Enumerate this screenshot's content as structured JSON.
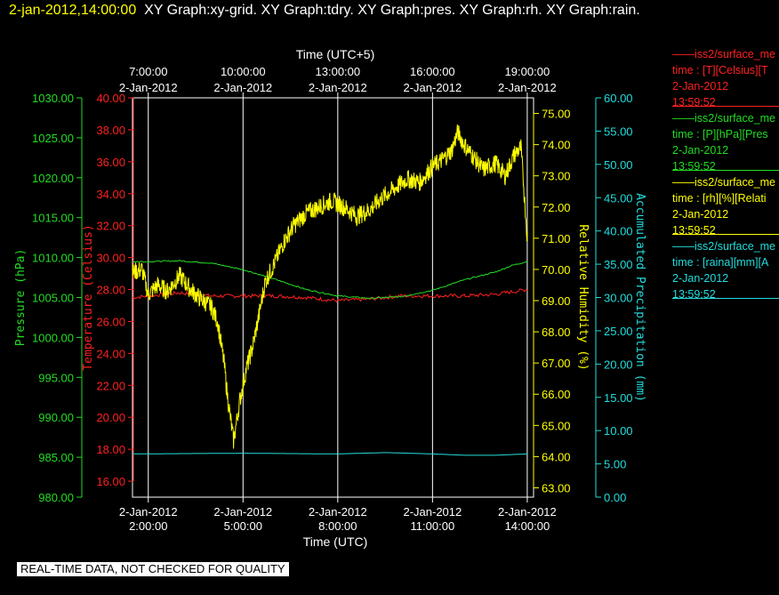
{
  "header": {
    "timestamp": "2-jan-2012,14:00:00",
    "graphs": "XY Graph:xy-grid.  XY Graph:tdry.  XY Graph:pres.  XY Graph:rh.  XY Graph:rain."
  },
  "footer": "REAL-TIME DATA, NOT CHECKED FOR QUALITY",
  "legend": [
    {
      "title": "——iss2/surface_me",
      "line1": "time : [T][Celsius][T",
      "line2": "2-Jan-2012",
      "line3": "13:59:52",
      "color": "#ff2020"
    },
    {
      "title": "——iss2/surface_me",
      "line1": "time : [P][hPa][Pres",
      "line2": "2-Jan-2012",
      "line3": "13:59:52",
      "color": "#22dd22"
    },
    {
      "title": "——iss2/surface_me",
      "line1": "time : [rh][%][Relati",
      "line2": "2-Jan-2012",
      "line3": "13:59:52",
      "color": "#ffff00"
    },
    {
      "title": "——iss2/surface_me",
      "line1": "time : [raina][mm][A",
      "line2": "2-Jan-2012",
      "line3": "13:59:52",
      "color": "#22dddd"
    }
  ],
  "chart_data": {
    "type": "line",
    "x_unit": "hour of day, 2-Jan-2012 (UTC)",
    "xlim": [
      1.5,
      14.2
    ],
    "x_bottom": {
      "label": "Time (UTC)",
      "ticks": [
        {
          "x": 2,
          "date": "2-Jan-2012",
          "time": "2:00:00"
        },
        {
          "x": 5,
          "date": "2-Jan-2012",
          "time": "5:00:00"
        },
        {
          "x": 8,
          "date": "2-Jan-2012",
          "time": "8:00:00"
        },
        {
          "x": 11,
          "date": "2-Jan-2012",
          "time": "11:00:00"
        },
        {
          "x": 14,
          "date": "2-Jan-2012",
          "time": "14:00:00"
        }
      ]
    },
    "x_top": {
      "label": "Time (UTC+5)",
      "ticks": [
        {
          "x": 2,
          "time": "7:00:00",
          "date": "2-Jan-2012"
        },
        {
          "x": 5,
          "time": "10:00:00",
          "date": "2-Jan-2012"
        },
        {
          "x": 8,
          "time": "13:00:00",
          "date": "2-Jan-2012"
        },
        {
          "x": 11,
          "time": "16:00:00",
          "date": "2-Jan-2012"
        },
        {
          "x": 14,
          "time": "19:00:00",
          "date": "2-Jan-2012"
        }
      ]
    },
    "grid": "vertical at major time ticks",
    "axes": [
      {
        "id": "pres",
        "label": "Pressure (hPa)",
        "color": "#22dd22",
        "ylim": [
          980,
          1030
        ],
        "ticks": [
          "980.00",
          "985.00",
          "990.00",
          "995.00",
          "1000.00",
          "1005.00",
          "1010.00",
          "1015.00",
          "1020.00",
          "1025.00",
          "1030.00"
        ]
      },
      {
        "id": "tdry",
        "label": "Temperature (Celsius)",
        "color": "#ff2020",
        "ylim": [
          15,
          40
        ],
        "ticks": [
          "16.00",
          "18.00",
          "20.00",
          "22.00",
          "24.00",
          "26.00",
          "28.00",
          "30.00",
          "32.00",
          "34.00",
          "36.00",
          "38.00",
          "40.00"
        ]
      },
      {
        "id": "rh",
        "label": "Relative Humidity (%)",
        "color": "#ffff00",
        "ylim": [
          62.7,
          75.5
        ],
        "ticks": [
          "63.00",
          "64.00",
          "65.00",
          "66.00",
          "67.00",
          "68.00",
          "69.00",
          "70.00",
          "71.00",
          "72.00",
          "73.00",
          "74.00",
          "75.00"
        ]
      },
      {
        "id": "rain",
        "label": "Accumulated Precipitation (mm)",
        "color": "#22dddd",
        "ylim": [
          0,
          60
        ],
        "ticks": [
          "0.00",
          "5.00",
          "10.00",
          "15.00",
          "20.00",
          "25.00",
          "30.00",
          "35.00",
          "40.00",
          "45.00",
          "50.00",
          "55.00",
          "60.00"
        ]
      }
    ],
    "series": [
      {
        "axis": "tdry",
        "color": "#ff2020",
        "x": [
          1.5,
          3,
          4,
          5,
          6,
          7,
          8,
          9,
          10,
          11,
          12,
          13,
          14
        ],
        "values": [
          27.5,
          27.8,
          27.6,
          27.6,
          27.6,
          27.5,
          27.3,
          27.4,
          27.6,
          27.6,
          27.6,
          27.7,
          28.0
        ],
        "noise": 0.12
      },
      {
        "axis": "pres",
        "color": "#22dd22",
        "x": [
          1.5,
          2,
          3,
          4,
          5,
          6,
          7,
          8,
          9,
          10,
          11,
          12,
          13,
          13.5,
          14
        ],
        "values": [
          1009.5,
          1009.5,
          1009.6,
          1009.3,
          1008.5,
          1007.3,
          1006.0,
          1005.2,
          1004.9,
          1005.1,
          1005.9,
          1007.2,
          1008.2,
          1009.0,
          1009.5
        ],
        "noise": 0.08
      },
      {
        "axis": "rh",
        "color": "#ffff00",
        "x": [
          1.5,
          1.8,
          2.0,
          2.3,
          2.6,
          3.0,
          3.3,
          3.6,
          4.0,
          4.2,
          4.4,
          4.5,
          4.7,
          4.9,
          5.1,
          5.3,
          5.5,
          5.7,
          6.0,
          6.3,
          6.6,
          7.0,
          7.4,
          7.8,
          8.2,
          8.6,
          9.0,
          9.4,
          9.8,
          10.2,
          10.6,
          11.0,
          11.3,
          11.6,
          11.8,
          12.0,
          12.3,
          12.6,
          13.0,
          13.3,
          13.6,
          13.8,
          13.9,
          14.0
        ],
        "values": [
          69.9,
          70.0,
          69.2,
          69.5,
          69.3,
          69.8,
          69.4,
          69.1,
          68.8,
          68.3,
          67.0,
          66.0,
          64.5,
          65.8,
          66.8,
          67.5,
          68.5,
          69.6,
          70.2,
          70.9,
          71.4,
          71.8,
          72.0,
          72.2,
          72.0,
          71.7,
          71.9,
          72.3,
          72.6,
          72.9,
          72.8,
          73.3,
          73.5,
          73.8,
          74.4,
          74.0,
          73.6,
          73.2,
          73.4,
          73.0,
          73.7,
          73.9,
          72.5,
          71.0
        ],
        "noise": 0.3
      },
      {
        "axis": "rain",
        "color": "#22dddd",
        "x": [
          1.5,
          5,
          8,
          9.5,
          11,
          12,
          13,
          14
        ],
        "values": [
          6.5,
          6.6,
          6.5,
          6.7,
          6.5,
          6.3,
          6.3,
          6.5
        ],
        "noise": 0
      }
    ]
  }
}
